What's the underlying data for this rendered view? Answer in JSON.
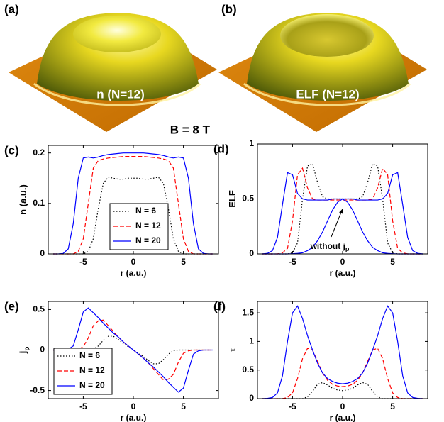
{
  "images": [
    {
      "label": "(a)",
      "caption": "n (N=12)"
    },
    {
      "label": "(b)",
      "caption": "ELF (N=12)"
    }
  ],
  "field": "B = 8 T",
  "chart_data": [
    {
      "type": "line",
      "label": "(c)",
      "xlabel": "r (a.u.)",
      "ylabel": "n (a.u.)",
      "xlim": [
        -8.5,
        8.5
      ],
      "xticks": [
        -5,
        0,
        5
      ],
      "ylim": [
        0,
        0.215
      ],
      "yticks": [
        0,
        0.1,
        0.2
      ],
      "legend": "lower center",
      "x": [
        -8,
        -7.5,
        -7,
        -6.5,
        -6,
        -5.5,
        -5,
        -4.5,
        -4,
        -3.5,
        -3,
        -2.5,
        -2,
        -1.5,
        -1,
        -0.5,
        0,
        0.5,
        1,
        1.5,
        2,
        2.5,
        3,
        3.5,
        4,
        4.5,
        5,
        5.5,
        6,
        6.5,
        7,
        7.5,
        8
      ],
      "series": [
        {
          "name": "N = 6",
          "color": "#000000",
          "dash": "dotted",
          "values": [
            0,
            0,
            0,
            0,
            0,
            0,
            0,
            0.005,
            0.03,
            0.09,
            0.14,
            0.152,
            0.15,
            0.148,
            0.148,
            0.15,
            0.15,
            0.15,
            0.148,
            0.148,
            0.15,
            0.152,
            0.14,
            0.09,
            0.03,
            0.005,
            0,
            0,
            0,
            0,
            0,
            0,
            0
          ]
        },
        {
          "name": "N = 12",
          "color": "#ff0000",
          "dash": "dashed",
          "values": [
            0,
            0,
            0,
            0,
            0,
            0.005,
            0.03,
            0.1,
            0.17,
            0.185,
            0.188,
            0.19,
            0.191,
            0.192,
            0.193,
            0.193,
            0.193,
            0.193,
            0.193,
            0.192,
            0.191,
            0.19,
            0.188,
            0.185,
            0.17,
            0.1,
            0.03,
            0.005,
            0,
            0,
            0,
            0,
            0
          ]
        },
        {
          "name": "N = 20",
          "color": "#0000ff",
          "dash": "solid",
          "values": [
            0,
            0,
            0.001,
            0.01,
            0.06,
            0.15,
            0.19,
            0.192,
            0.19,
            0.192,
            0.195,
            0.197,
            0.198,
            0.199,
            0.2,
            0.2,
            0.2,
            0.2,
            0.2,
            0.199,
            0.198,
            0.197,
            0.195,
            0.192,
            0.19,
            0.192,
            0.19,
            0.15,
            0.06,
            0.01,
            0.001,
            0,
            0
          ]
        }
      ]
    },
    {
      "type": "line",
      "label": "(d)",
      "xlabel": "r (a.u.)",
      "ylabel": "ELF",
      "xlim": [
        -8.5,
        8.5
      ],
      "xticks": [
        -5,
        0,
        5
      ],
      "ylim": [
        0,
        1
      ],
      "yticks": [
        0,
        0.5,
        1
      ],
      "annotation": {
        "text": "without j",
        "subscript": "p"
      },
      "x": [
        -8,
        -7.5,
        -7,
        -6.5,
        -6,
        -5.5,
        -5,
        -4.5,
        -4,
        -3.5,
        -3,
        -2.5,
        -2,
        -1.5,
        -1,
        -0.5,
        0,
        0.5,
        1,
        1.5,
        2,
        2.5,
        3,
        3.5,
        4,
        4.5,
        5,
        5.5,
        6,
        6.5,
        7,
        7.5,
        8
      ],
      "series": [
        {
          "color": "#000000",
          "dash": "dotted",
          "values": [
            0,
            0,
            0,
            0,
            0,
            0,
            0.01,
            0.1,
            0.5,
            0.8,
            0.82,
            0.65,
            0.52,
            0.5,
            0.5,
            0.5,
            0.5,
            0.5,
            0.5,
            0.5,
            0.52,
            0.65,
            0.82,
            0.8,
            0.5,
            0.1,
            0.01,
            0,
            0,
            0,
            0,
            0,
            0
          ]
        },
        {
          "color": "#ff0000",
          "dash": "dashed",
          "values": [
            0,
            0,
            0,
            0,
            0.01,
            0.05,
            0.3,
            0.72,
            0.78,
            0.6,
            0.5,
            0.49,
            0.49,
            0.49,
            0.49,
            0.49,
            0.49,
            0.49,
            0.49,
            0.49,
            0.49,
            0.49,
            0.5,
            0.6,
            0.78,
            0.72,
            0.3,
            0.05,
            0.01,
            0,
            0,
            0,
            0
          ]
        },
        {
          "color": "#0000ff",
          "dash": "solid",
          "values": [
            0,
            0.005,
            0.03,
            0.15,
            0.45,
            0.74,
            0.72,
            0.55,
            0.5,
            0.49,
            0.49,
            0.49,
            0.49,
            0.49,
            0.5,
            0.5,
            0.5,
            0.5,
            0.5,
            0.49,
            0.49,
            0.49,
            0.49,
            0.49,
            0.5,
            0.55,
            0.72,
            0.74,
            0.45,
            0.15,
            0.03,
            0.005,
            0
          ]
        },
        {
          "color": "#0000ff",
          "dash": "solid",
          "values": [
            0,
            0,
            0,
            0,
            0,
            0,
            0.002,
            0.005,
            0.01,
            0.03,
            0.06,
            0.12,
            0.2,
            0.3,
            0.4,
            0.47,
            0.5,
            0.47,
            0.4,
            0.3,
            0.2,
            0.12,
            0.06,
            0.03,
            0.01,
            0.005,
            0.002,
            0,
            0,
            0,
            0,
            0,
            0
          ]
        }
      ]
    },
    {
      "type": "line",
      "label": "(e)",
      "xlabel": "r (a.u.)",
      "ylabel": "j",
      "ylabel_subscript": "p",
      "xlim": [
        -8.5,
        8.5
      ],
      "xticks": [
        -5,
        0,
        5
      ],
      "ylim": [
        -0.6,
        0.6
      ],
      "yticks": [
        -0.5,
        0,
        0.5
      ],
      "legend": "lower left",
      "x": [
        -8,
        -7.5,
        -7,
        -6.5,
        -6,
        -5.5,
        -5,
        -4.5,
        -4,
        -3.5,
        -3,
        -2.5,
        -2,
        -1.5,
        -1,
        -0.5,
        0,
        0.5,
        1,
        1.5,
        2,
        2.5,
        3,
        3.5,
        4,
        4.5,
        5,
        5.5,
        6,
        6.5,
        7,
        7.5,
        8
      ],
      "series": [
        {
          "name": "N = 6",
          "color": "#000000",
          "dash": "dotted",
          "values": [
            0,
            0,
            0,
            0,
            0,
            0,
            0,
            0,
            0.01,
            0.05,
            0.12,
            0.17,
            0.17,
            0.13,
            0.08,
            0.04,
            0,
            -0.04,
            -0.08,
            -0.13,
            -0.17,
            -0.17,
            -0.12,
            -0.05,
            -0.01,
            0,
            0,
            0,
            0,
            0,
            0,
            0,
            0
          ]
        },
        {
          "name": "N = 12",
          "color": "#ff0000",
          "dash": "dashed",
          "values": [
            0,
            0,
            0,
            0,
            0,
            0.01,
            0.04,
            0.15,
            0.3,
            0.36,
            0.37,
            0.3,
            0.23,
            0.16,
            0.1,
            0.05,
            0,
            -0.05,
            -0.1,
            -0.16,
            -0.23,
            -0.3,
            -0.37,
            -0.36,
            -0.3,
            -0.15,
            -0.04,
            -0.01,
            0,
            0,
            0,
            0,
            0
          ]
        },
        {
          "name": "N = 20",
          "color": "#0000ff",
          "dash": "solid",
          "values": [
            0,
            0,
            0,
            0.01,
            0.05,
            0.25,
            0.47,
            0.52,
            0.46,
            0.4,
            0.33,
            0.27,
            0.21,
            0.16,
            0.1,
            0.05,
            0,
            -0.05,
            -0.1,
            -0.16,
            -0.21,
            -0.27,
            -0.33,
            -0.4,
            -0.46,
            -0.52,
            -0.47,
            -0.25,
            -0.05,
            -0.01,
            0,
            0,
            0
          ]
        }
      ]
    },
    {
      "type": "line",
      "label": "(f)",
      "xlabel": "r (a.u.)",
      "ylabel": "τ",
      "xlim": [
        -8.5,
        8.5
      ],
      "xticks": [
        -5,
        0,
        5
      ],
      "ylim": [
        0,
        1.7
      ],
      "yticks": [
        0,
        0.5,
        1,
        1.5
      ],
      "x": [
        -8,
        -7.5,
        -7,
        -6.5,
        -6,
        -5.5,
        -5,
        -4.5,
        -4,
        -3.5,
        -3,
        -2.5,
        -2,
        -1.5,
        -1,
        -0.5,
        0,
        0.5,
        1,
        1.5,
        2,
        2.5,
        3,
        3.5,
        4,
        4.5,
        5,
        5.5,
        6,
        6.5,
        7,
        7.5,
        8
      ],
      "series": [
        {
          "color": "#000000",
          "dash": "dotted",
          "values": [
            0,
            0,
            0,
            0,
            0,
            0,
            0,
            0,
            0,
            0.03,
            0.13,
            0.25,
            0.28,
            0.24,
            0.18,
            0.15,
            0.14,
            0.15,
            0.18,
            0.24,
            0.28,
            0.25,
            0.13,
            0.03,
            0,
            0,
            0,
            0,
            0,
            0,
            0,
            0,
            0
          ]
        },
        {
          "color": "#ff0000",
          "dash": "dashed",
          "values": [
            0,
            0,
            0,
            0,
            0,
            0.02,
            0.1,
            0.35,
            0.7,
            0.88,
            0.85,
            0.65,
            0.45,
            0.32,
            0.25,
            0.22,
            0.21,
            0.22,
            0.25,
            0.32,
            0.45,
            0.65,
            0.85,
            0.88,
            0.7,
            0.35,
            0.1,
            0.02,
            0,
            0,
            0,
            0,
            0
          ]
        },
        {
          "color": "#0000ff",
          "dash": "solid",
          "values": [
            0,
            0.005,
            0.02,
            0.1,
            0.4,
            1.0,
            1.5,
            1.62,
            1.4,
            1.1,
            0.85,
            0.62,
            0.45,
            0.35,
            0.3,
            0.27,
            0.26,
            0.27,
            0.3,
            0.35,
            0.45,
            0.62,
            0.85,
            1.1,
            1.4,
            1.62,
            1.5,
            1.0,
            0.4,
            0.1,
            0.02,
            0.005,
            0
          ]
        }
      ]
    }
  ]
}
